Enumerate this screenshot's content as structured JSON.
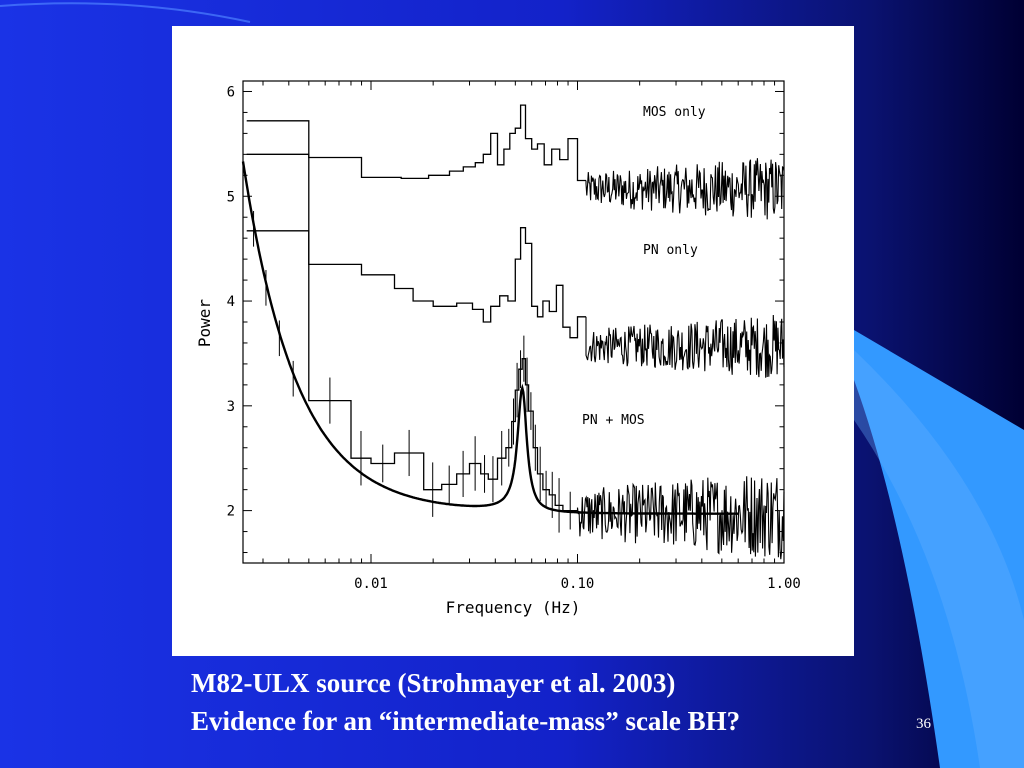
{
  "slide": {
    "caption_line1": "M82-ULX source (Strohmayer et al. 2003)",
    "caption_line2": "Evidence for an “intermediate-mass” scale BH?",
    "slide_number": "36",
    "colors": {
      "background_left": "#1a33e6",
      "background_right": "#000033",
      "accent_light_blue": "#3399ff",
      "text": "#ffffff"
    }
  },
  "chart_data": {
    "type": "line",
    "xlabel": "Frequency (Hz)",
    "ylabel": "Power",
    "xscale": "log",
    "xlim": [
      0.0024,
      1.0
    ],
    "ylim": [
      1.5,
      6.1
    ],
    "xticks": [
      0.01,
      0.1,
      1.0
    ],
    "xtick_labels": [
      "0.01",
      "0.10",
      "1.00"
    ],
    "yticks": [
      2,
      3,
      4,
      5,
      6
    ],
    "ytick_labels": [
      "2",
      "3",
      "4",
      "5",
      "6"
    ],
    "grid": false,
    "series": [
      {
        "name": "MOS only",
        "offset": 3.1,
        "steps": [
          [
            0.0025,
            0.005,
            5.72
          ],
          [
            0.005,
            0.009,
            5.37
          ],
          [
            0.009,
            0.014,
            5.18
          ],
          [
            0.014,
            0.019,
            5.17
          ],
          [
            0.019,
            0.024,
            5.2
          ],
          [
            0.024,
            0.028,
            5.24
          ],
          [
            0.028,
            0.032,
            5.28
          ],
          [
            0.032,
            0.035,
            5.32
          ],
          [
            0.035,
            0.038,
            5.4
          ],
          [
            0.038,
            0.041,
            5.6
          ],
          [
            0.041,
            0.044,
            5.3
          ],
          [
            0.044,
            0.047,
            5.45
          ],
          [
            0.047,
            0.05,
            5.6
          ],
          [
            0.05,
            0.053,
            5.65
          ],
          [
            0.053,
            0.056,
            5.87
          ],
          [
            0.056,
            0.06,
            5.55
          ],
          [
            0.06,
            0.064,
            5.45
          ],
          [
            0.064,
            0.069,
            5.5
          ],
          [
            0.069,
            0.075,
            5.3
          ],
          [
            0.075,
            0.082,
            5.45
          ],
          [
            0.082,
            0.09,
            5.35
          ],
          [
            0.09,
            0.1,
            5.55
          ],
          [
            0.1,
            0.11,
            5.15
          ]
        ]
      },
      {
        "name": "PN only",
        "offset": 1.6,
        "steps": [
          [
            0.0025,
            0.005,
            4.67
          ],
          [
            0.005,
            0.009,
            4.35
          ],
          [
            0.009,
            0.013,
            4.25
          ],
          [
            0.013,
            0.016,
            4.12
          ],
          [
            0.016,
            0.02,
            4.0
          ],
          [
            0.02,
            0.026,
            3.95
          ],
          [
            0.026,
            0.031,
            3.98
          ],
          [
            0.031,
            0.035,
            3.92
          ],
          [
            0.035,
            0.038,
            3.8
          ],
          [
            0.038,
            0.042,
            3.95
          ],
          [
            0.042,
            0.046,
            4.05
          ],
          [
            0.046,
            0.05,
            4.0
          ],
          [
            0.05,
            0.053,
            4.4
          ],
          [
            0.053,
            0.056,
            4.7
          ],
          [
            0.056,
            0.06,
            4.55
          ],
          [
            0.06,
            0.064,
            3.95
          ],
          [
            0.064,
            0.068,
            3.85
          ],
          [
            0.068,
            0.073,
            4.0
          ],
          [
            0.073,
            0.079,
            3.9
          ],
          [
            0.079,
            0.085,
            4.15
          ],
          [
            0.085,
            0.092,
            3.75
          ],
          [
            0.092,
            0.1,
            3.65
          ],
          [
            0.1,
            0.11,
            3.85
          ]
        ]
      },
      {
        "name": "PN + MOS",
        "offset": 0.0,
        "steps": [
          [
            0.0025,
            0.005,
            5.4
          ],
          [
            0.005,
            0.008,
            3.05
          ],
          [
            0.008,
            0.01,
            2.5
          ],
          [
            0.01,
            0.013,
            2.45
          ],
          [
            0.013,
            0.018,
            2.55
          ],
          [
            0.018,
            0.022,
            2.2
          ],
          [
            0.022,
            0.026,
            2.25
          ],
          [
            0.026,
            0.03,
            2.35
          ],
          [
            0.03,
            0.034,
            2.45
          ],
          [
            0.034,
            0.037,
            2.35
          ],
          [
            0.037,
            0.041,
            2.3
          ],
          [
            0.041,
            0.045,
            2.5
          ],
          [
            0.045,
            0.048,
            2.6
          ],
          [
            0.048,
            0.05,
            2.85
          ],
          [
            0.05,
            0.052,
            3.15
          ],
          [
            0.052,
            0.054,
            3.35
          ],
          [
            0.054,
            0.056,
            3.45
          ],
          [
            0.056,
            0.058,
            3.2
          ],
          [
            0.058,
            0.061,
            2.95
          ],
          [
            0.061,
            0.064,
            2.6
          ],
          [
            0.064,
            0.068,
            2.35
          ],
          [
            0.068,
            0.073,
            2.2
          ],
          [
            0.073,
            0.078,
            2.15
          ],
          [
            0.078,
            0.085,
            2.05
          ],
          [
            0.085,
            0.1,
            2.0
          ]
        ]
      }
    ],
    "model": {
      "description": "power-law continuum plus Lorentzian QPO",
      "constant": 1.97,
      "powerlaw_norm": 1.0,
      "powerlaw_pivot": 0.005,
      "powerlaw_index": 1.65,
      "qpo_amplitude": 1.18,
      "qpo_centroid": 0.054,
      "qpo_halfwidth": 0.0034
    },
    "noise_region_hz": [
      0.1,
      1.0
    ],
    "annotations": [
      "MOS only",
      "PN only",
      "PN + MOS"
    ]
  }
}
